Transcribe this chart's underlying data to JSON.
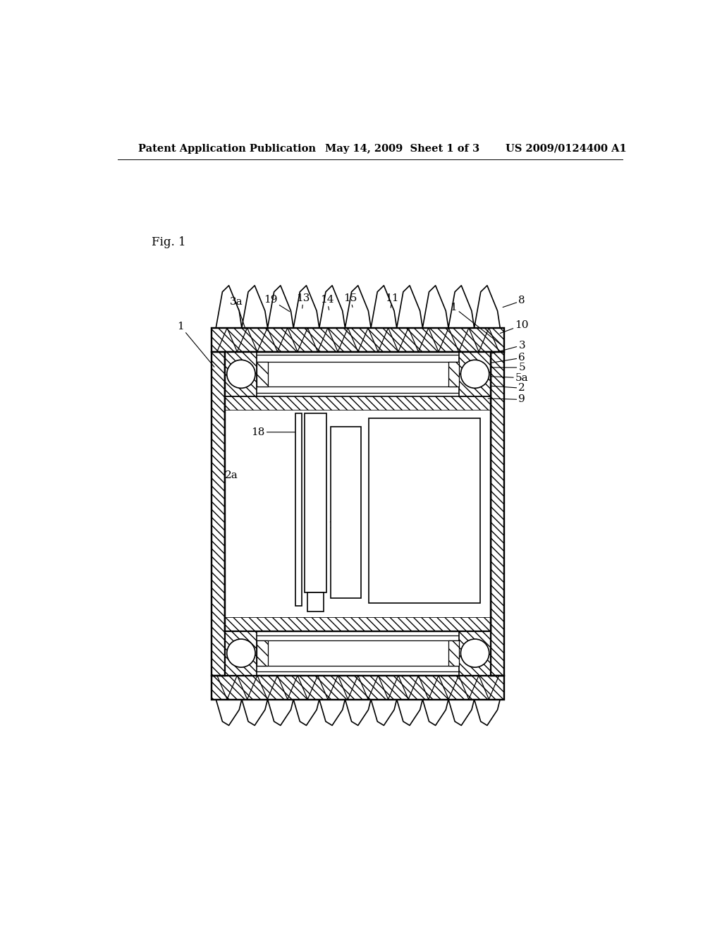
{
  "header_left": "Patent Application Publication",
  "header_mid": "May 14, 2009  Sheet 1 of 3",
  "header_right": "US 2009/0124400 A1",
  "fig_label": "Fig. 1",
  "bg_color": "#ffffff",
  "line_color": "#000000",
  "header_fontsize": 10.5,
  "fig_label_fontsize": 12,
  "annotation_fontsize": 11
}
